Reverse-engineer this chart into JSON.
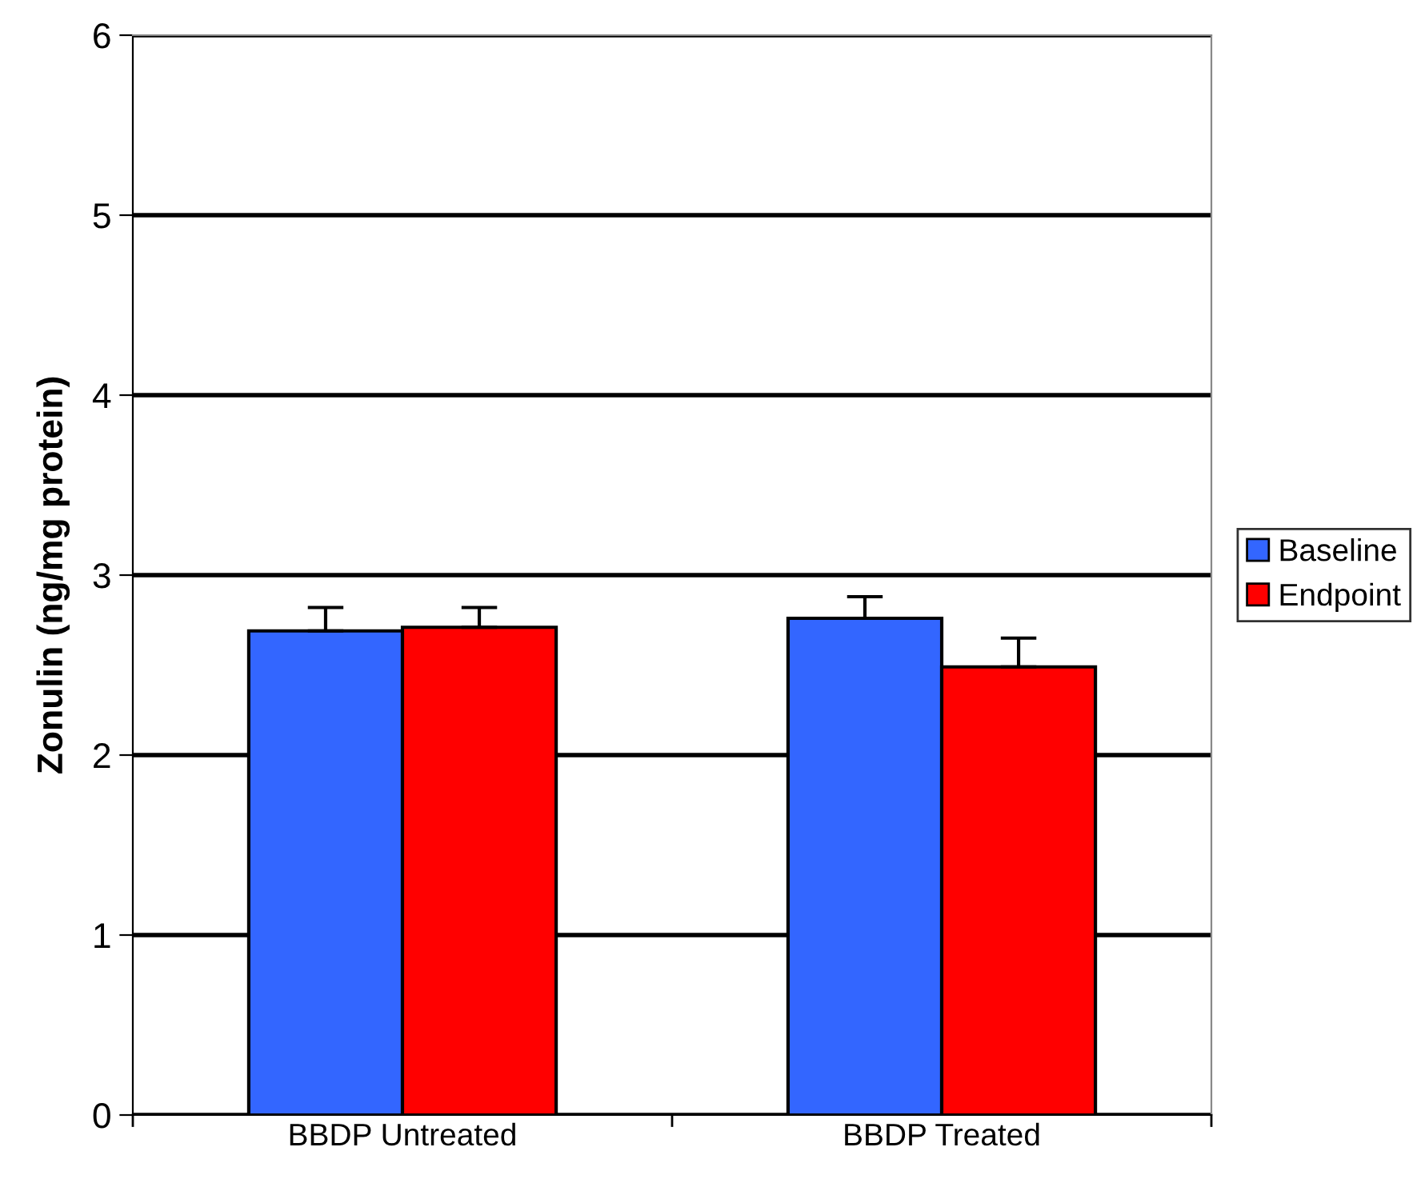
{
  "chart_data": {
    "type": "bar",
    "ylabel": "Zonulin (ng/mg protein)",
    "categories": [
      "BBDP Untreated",
      "BBDP Treated"
    ],
    "series": [
      {
        "name": "Baseline",
        "color": "#3366ff",
        "values": [
          2.69,
          2.76
        ],
        "errors": [
          0.13,
          0.12
        ]
      },
      {
        "name": "Endpoint",
        "color": "#ff0000",
        "values": [
          2.71,
          2.49
        ],
        "errors": [
          0.11,
          0.16
        ]
      }
    ],
    "ylim": [
      0,
      6
    ],
    "yticks": [
      0,
      1,
      2,
      3,
      4,
      5,
      6
    ],
    "grid": "y",
    "legend": "right"
  }
}
